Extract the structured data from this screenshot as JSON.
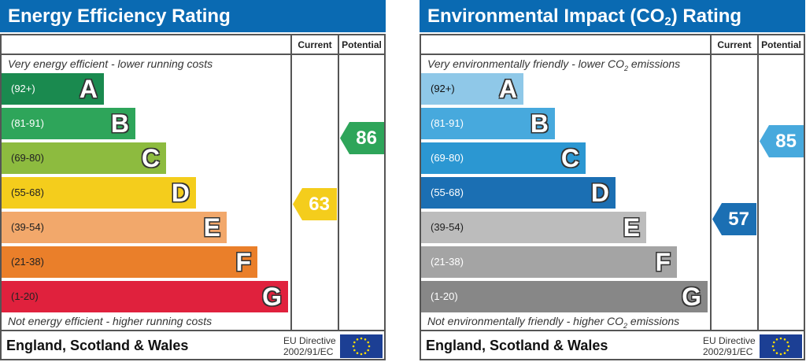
{
  "energy": {
    "title": "Energy Efficiency Rating",
    "col_current": "Current",
    "col_potential": "Potential",
    "top_note": "Very energy efficient - lower running costs",
    "bottom_note": "Not energy efficient - higher running costs",
    "bands": [
      {
        "range": "(92+)",
        "letter": "A",
        "color": "#1a8a4f",
        "text": "#fff"
      },
      {
        "range": "(81-91)",
        "letter": "B",
        "color": "#2ea55a",
        "text": "#fff"
      },
      {
        "range": "(69-80)",
        "letter": "C",
        "color": "#8dbb3f",
        "text": "#222"
      },
      {
        "range": "(55-68)",
        "letter": "D",
        "color": "#f4cd1c",
        "text": "#222"
      },
      {
        "range": "(39-54)",
        "letter": "E",
        "color": "#f2a86b",
        "text": "#222"
      },
      {
        "range": "(21-38)",
        "letter": "F",
        "color": "#ea7f2a",
        "text": "#222"
      },
      {
        "range": "(1-20)",
        "letter": "G",
        "color": "#e0213d",
        "text": "#222"
      }
    ],
    "current": {
      "value": "63",
      "band": "D",
      "color": "#f4cd1c"
    },
    "potential": {
      "value": "86",
      "band": "B",
      "color": "#2ea55a"
    },
    "footer": "England, Scotland & Wales",
    "eu_line1": "EU Directive",
    "eu_line2": "2002/91/EC"
  },
  "environment": {
    "title_pre": "Environmental Impact (CO",
    "title_sub": "2",
    "title_post": ") Rating",
    "col_current": "Current",
    "col_potential": "Potential",
    "top_pre": "Very environmentally friendly - lower CO",
    "top_sub": "2",
    "top_post": " emissions",
    "bottom_pre": "Not environmentally friendly - higher CO",
    "bottom_sub": "2",
    "bottom_post": " emissions",
    "bands": [
      {
        "range": "(92+)",
        "letter": "A",
        "color": "#8fc8e8",
        "text": "#111"
      },
      {
        "range": "(81-91)",
        "letter": "B",
        "color": "#47a9dd",
        "text": "#fff"
      },
      {
        "range": "(69-80)",
        "letter": "C",
        "color": "#2b97d2",
        "text": "#fff"
      },
      {
        "range": "(55-68)",
        "letter": "D",
        "color": "#1b6fb3",
        "text": "#fff"
      },
      {
        "range": "(39-54)",
        "letter": "E",
        "color": "#bcbcbc",
        "text": "#222"
      },
      {
        "range": "(21-38)",
        "letter": "F",
        "color": "#a4a4a4",
        "text": "#fff"
      },
      {
        "range": "(1-20)",
        "letter": "G",
        "color": "#878787",
        "text": "#fff"
      }
    ],
    "current": {
      "value": "57",
      "band": "D",
      "color": "#1b6fb3"
    },
    "potential": {
      "value": "85",
      "band": "B",
      "color": "#47a9dd"
    },
    "footer": "England, Scotland & Wales",
    "eu_line1": "EU Directive",
    "eu_line2": "2002/91/EC"
  }
}
